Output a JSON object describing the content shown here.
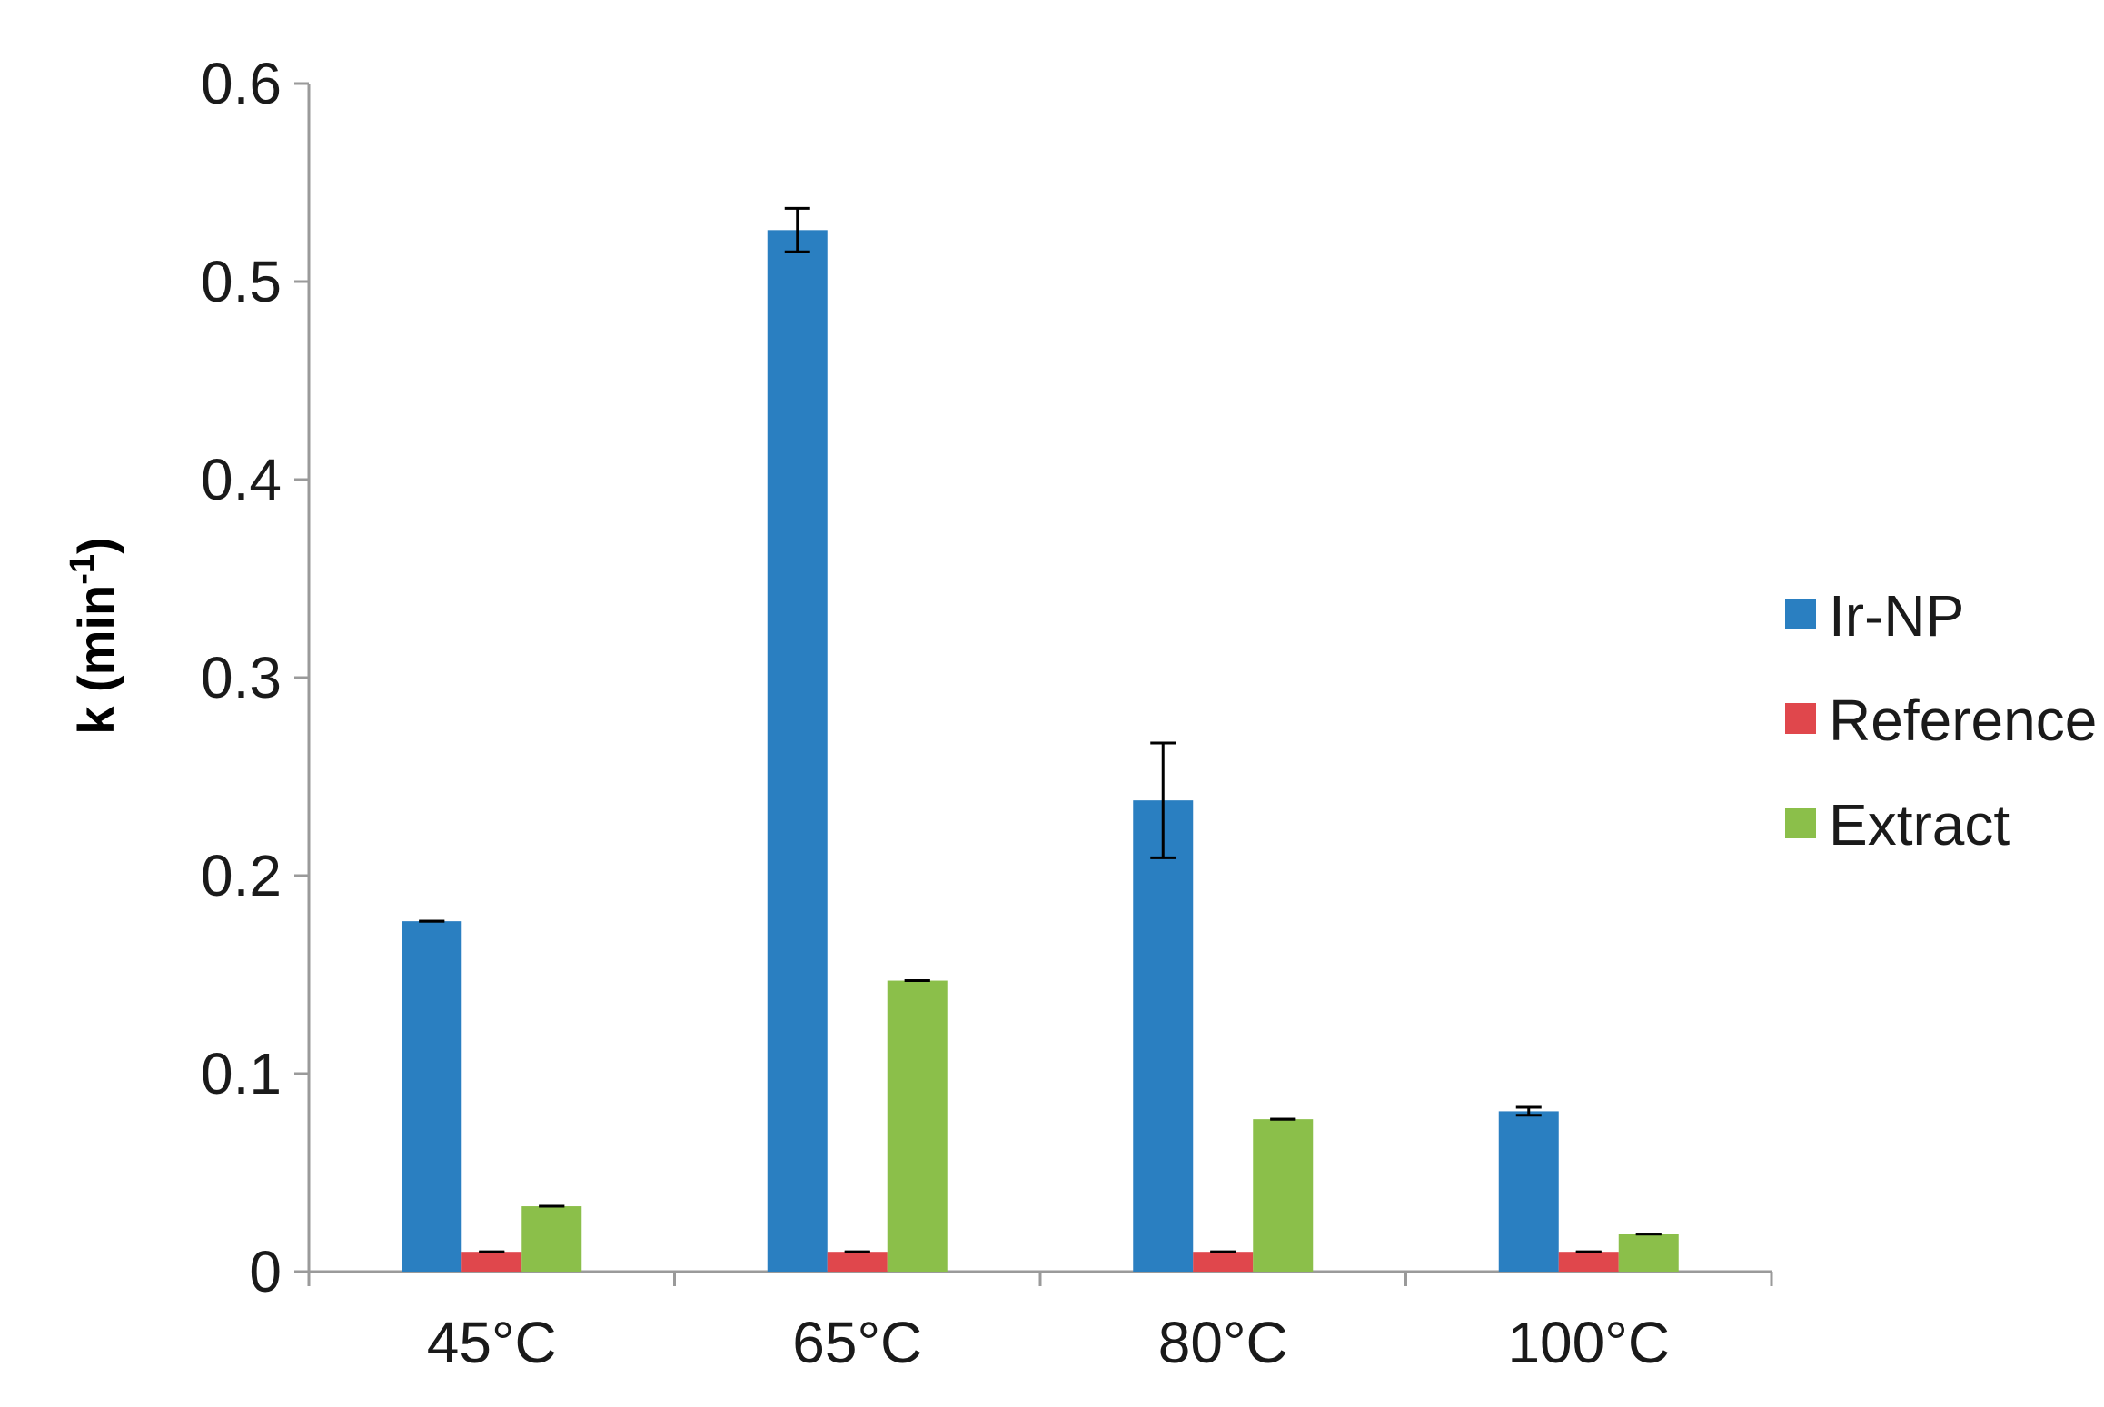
{
  "chart_data": {
    "type": "bar",
    "categories": [
      "45°C",
      "65°C",
      "80°C",
      "100°C"
    ],
    "series": [
      {
        "name": "Ir-NP",
        "color": "#2a7fc1",
        "values": [
          0.177,
          0.526,
          0.238,
          0.081
        ],
        "errors": [
          0.0,
          0.011,
          0.029,
          0.002
        ]
      },
      {
        "name": "Reference",
        "color": "#e0474c",
        "values": [
          0.01,
          0.01,
          0.01,
          0.01
        ],
        "errors": [
          0.0,
          0.0,
          0.0,
          0.0
        ]
      },
      {
        "name": "Extract",
        "color": "#8bbf4a",
        "values": [
          0.033,
          0.147,
          0.077,
          0.019
        ],
        "errors": [
          0.0,
          0.0,
          0.0,
          0.0
        ]
      }
    ],
    "yticks": [
      "0",
      "0.1",
      "0.2",
      "0.3",
      "0.4",
      "0.5",
      "0.6"
    ],
    "ylim": [
      0,
      0.6
    ],
    "ylabel": {
      "main": "k (min",
      "sup": "-1",
      "close": ")"
    },
    "xlabel": "",
    "title": "",
    "legend_position": "right",
    "grid": false
  }
}
